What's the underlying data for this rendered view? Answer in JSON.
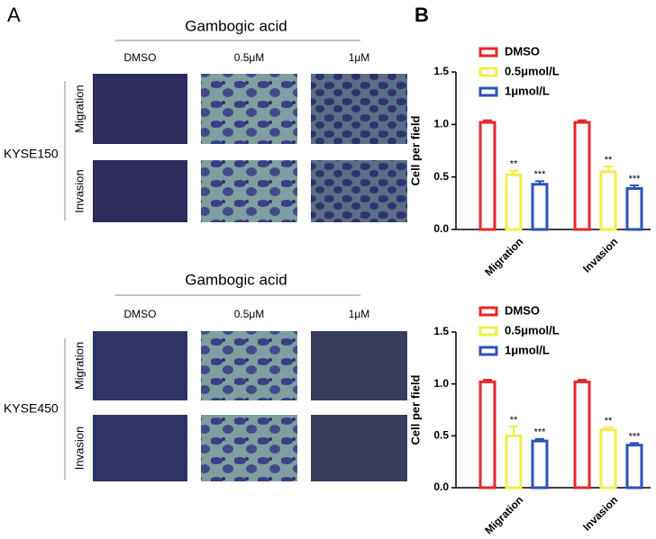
{
  "panel_a": {
    "label": "A",
    "blocks": [
      {
        "header": "Gambogic acid",
        "columns": [
          "DMSO",
          "0.5μM",
          "1μM"
        ],
        "rows": [
          "Migration",
          "Invasion"
        ],
        "cell_line": "KYSE150"
      },
      {
        "header": "Gambogic acid",
        "columns": [
          "DMSO",
          "0.5μM",
          "1μM"
        ],
        "rows": [
          "Migration",
          "Invasion"
        ],
        "cell_line": "KYSE450"
      }
    ]
  },
  "panel_b_label": "B",
  "chart_data": [
    {
      "type": "bar",
      "ylabel": "Cell per field",
      "categories": [
        "Migration",
        "Invasion"
      ],
      "series": [
        {
          "name": "DMSO",
          "color": "#e8262b",
          "values": [
            1.02,
            1.02
          ],
          "errors": [
            0.02,
            0.02
          ]
        },
        {
          "name": "0.5μmol/L",
          "color": "#f2ee4a",
          "values": [
            0.52,
            0.55
          ],
          "errors": [
            0.04,
            0.05
          ],
          "significance": [
            "**",
            "**"
          ]
        },
        {
          "name": "1μmol/L",
          "color": "#2a52b8",
          "values": [
            0.43,
            0.39
          ],
          "errors": [
            0.03,
            0.03
          ],
          "significance": [
            "***",
            "***"
          ]
        }
      ],
      "ylim": [
        0,
        1.5
      ],
      "yticks": [
        {
          "value": 0,
          "label": "0.0"
        },
        0.5,
        {
          "value": 1,
          "label": "1.0"
        },
        1.5
      ]
    },
    {
      "type": "bar",
      "ylabel": "Cell per field",
      "categories": [
        "Migration",
        "Invasion"
      ],
      "series": [
        {
          "name": "DMSO",
          "color": "#e8262b",
          "values": [
            1.02,
            1.02
          ],
          "errors": [
            0.02,
            0.02
          ]
        },
        {
          "name": "0.5μmol/L",
          "color": "#f2ee4a",
          "values": [
            0.5,
            0.56
          ],
          "errors": [
            0.09,
            0.02
          ],
          "significance": [
            "**",
            "**"
          ]
        },
        {
          "name": "1μmol/L",
          "color": "#2a52b8",
          "values": [
            0.45,
            0.41
          ],
          "errors": [
            0.02,
            0.02
          ],
          "significance": [
            "***",
            "***"
          ]
        }
      ],
      "ylim": [
        0,
        1.5
      ],
      "yticks": [
        {
          "value": 0,
          "label": "0.0"
        },
        0.5,
        {
          "value": 1,
          "label": "1.0"
        },
        1.5
      ]
    }
  ]
}
